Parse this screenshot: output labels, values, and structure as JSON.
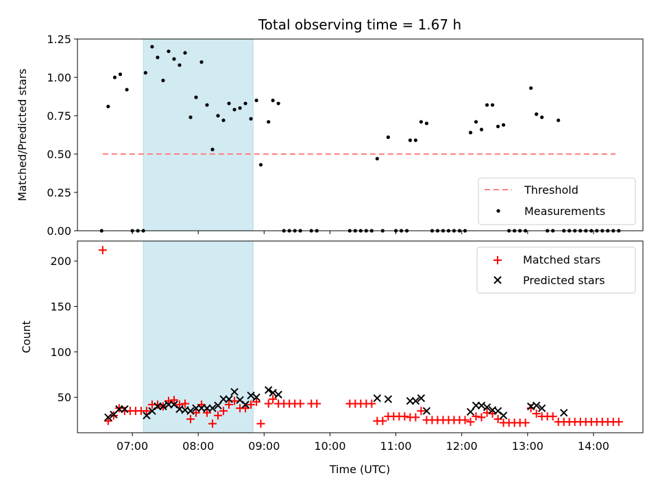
{
  "chart_data": [
    {
      "type": "scatter",
      "title": "Total observing time = 1.67 h",
      "ylabel": "Matched/Predicted stars",
      "xlabel": "",
      "xlim": [
        "06:10",
        "14:45"
      ],
      "ylim": [
        0,
        1.25
      ],
      "yticks": [
        "0.00",
        "0.25",
        "0.50",
        "0.75",
        "1.00",
        "1.25"
      ],
      "grid": false,
      "legend_position": "bottom-right",
      "shaded_interval": {
        "start": "07:10",
        "end": "08:50",
        "color": "#add8e6"
      },
      "threshold": {
        "name": "Threshold",
        "value": 0.5,
        "x_start": "06:33",
        "x_end": "14:20",
        "color": "#ff8080"
      },
      "series": [
        {
          "name": "Measurements",
          "color": "#000000",
          "points": [
            [
              "06:32",
              0
            ],
            [
              "06:38",
              0.81
            ],
            [
              "06:44",
              1.0
            ],
            [
              "06:49",
              1.02
            ],
            [
              "06:55",
              0.92
            ],
            [
              "07:00",
              0
            ],
            [
              "07:05",
              0
            ],
            [
              "07:10",
              0
            ],
            [
              "07:12",
              1.03
            ],
            [
              "07:18",
              1.2
            ],
            [
              "07:23",
              1.13
            ],
            [
              "07:28",
              0.98
            ],
            [
              "07:33",
              1.17
            ],
            [
              "07:38",
              1.12
            ],
            [
              "07:43",
              1.08
            ],
            [
              "07:48",
              1.16
            ],
            [
              "07:53",
              0.74
            ],
            [
              "07:58",
              0.87
            ],
            [
              "08:03",
              1.1
            ],
            [
              "08:08",
              0.82
            ],
            [
              "08:13",
              0.53
            ],
            [
              "08:18",
              0.75
            ],
            [
              "08:23",
              0.72
            ],
            [
              "08:28",
              0.83
            ],
            [
              "08:33",
              0.79
            ],
            [
              "08:38",
              0.8
            ],
            [
              "08:43",
              0.83
            ],
            [
              "08:48",
              0.73
            ],
            [
              "08:53",
              0.85
            ],
            [
              "08:57",
              0.43
            ],
            [
              "09:04",
              0.71
            ],
            [
              "09:08",
              0.85
            ],
            [
              "09:13",
              0.83
            ],
            [
              "09:18",
              0
            ],
            [
              "09:23",
              0
            ],
            [
              "09:28",
              0
            ],
            [
              "09:33",
              0
            ],
            [
              "09:43",
              0
            ],
            [
              "09:48",
              0
            ],
            [
              "10:18",
              0
            ],
            [
              "10:23",
              0
            ],
            [
              "10:28",
              0
            ],
            [
              "10:33",
              0
            ],
            [
              "10:38",
              0
            ],
            [
              "10:43",
              0.47
            ],
            [
              "10:48",
              0
            ],
            [
              "10:53",
              0.61
            ],
            [
              "11:00",
              0
            ],
            [
              "11:05",
              0
            ],
            [
              "11:10",
              0
            ],
            [
              "11:13",
              0.59
            ],
            [
              "11:18",
              0.59
            ],
            [
              "11:23",
              0.71
            ],
            [
              "11:28",
              0.7
            ],
            [
              "11:33",
              0
            ],
            [
              "11:38",
              0
            ],
            [
              "11:43",
              0
            ],
            [
              "11:48",
              0
            ],
            [
              "11:53",
              0
            ],
            [
              "11:58",
              0
            ],
            [
              "12:03",
              0
            ],
            [
              "12:08",
              0.64
            ],
            [
              "12:13",
              0.71
            ],
            [
              "12:18",
              0.66
            ],
            [
              "12:23",
              0.82
            ],
            [
              "12:28",
              0.82
            ],
            [
              "12:33",
              0.68
            ],
            [
              "12:38",
              0.69
            ],
            [
              "12:43",
              0
            ],
            [
              "12:48",
              0
            ],
            [
              "12:53",
              0
            ],
            [
              "12:58",
              0
            ],
            [
              "13:03",
              0.93
            ],
            [
              "13:08",
              0.76
            ],
            [
              "13:13",
              0.74
            ],
            [
              "13:18",
              0
            ],
            [
              "13:23",
              0
            ],
            [
              "13:28",
              0.72
            ],
            [
              "13:33",
              0
            ],
            [
              "13:38",
              0
            ],
            [
              "13:43",
              0
            ],
            [
              "13:48",
              0
            ],
            [
              "13:53",
              0
            ],
            [
              "13:58",
              0
            ],
            [
              "14:03",
              0
            ],
            [
              "14:08",
              0
            ],
            [
              "14:13",
              0
            ],
            [
              "14:18",
              0
            ],
            [
              "14:23",
              0
            ]
          ]
        }
      ]
    },
    {
      "type": "scatter",
      "title": "",
      "xlabel": "Time (UTC)",
      "ylabel": "Count",
      "xlim": [
        "06:10",
        "14:45"
      ],
      "ylim": [
        11,
        222
      ],
      "xticks": [
        "07:00",
        "08:00",
        "09:00",
        "10:00",
        "11:00",
        "12:00",
        "13:00",
        "14:00"
      ],
      "yticks": [
        "50",
        "100",
        "150",
        "200"
      ],
      "grid": false,
      "legend_position": "top-right",
      "shaded_interval": {
        "start": "07:10",
        "end": "08:50",
        "color": "#add8e6"
      },
      "series": [
        {
          "name": "Matched stars",
          "marker": "plus",
          "color": "#ff0000",
          "points": [
            [
              "06:33",
              212
            ],
            [
              "06:38",
              24
            ],
            [
              "06:43",
              30
            ],
            [
              "06:48",
              38
            ],
            [
              "06:53",
              35
            ],
            [
              "06:58",
              35
            ],
            [
              "07:03",
              35
            ],
            [
              "07:08",
              35
            ],
            [
              "07:13",
              35
            ],
            [
              "07:18",
              42
            ],
            [
              "07:23",
              42
            ],
            [
              "07:28",
              40
            ],
            [
              "07:33",
              46
            ],
            [
              "07:38",
              47
            ],
            [
              "07:43",
              42
            ],
            [
              "07:48",
              43
            ],
            [
              "07:53",
              26
            ],
            [
              "07:58",
              33
            ],
            [
              "08:03",
              42
            ],
            [
              "08:08",
              33
            ],
            [
              "08:13",
              21
            ],
            [
              "08:18",
              30
            ],
            [
              "08:23",
              35
            ],
            [
              "08:28",
              42
            ],
            [
              "08:33",
              46
            ],
            [
              "08:38",
              38
            ],
            [
              "08:43",
              38
            ],
            [
              "08:48",
              42
            ],
            [
              "08:53",
              45
            ],
            [
              "08:57",
              21
            ],
            [
              "09:04",
              43
            ],
            [
              "09:08",
              48
            ],
            [
              "09:13",
              43
            ],
            [
              "09:18",
              43
            ],
            [
              "09:23",
              43
            ],
            [
              "09:28",
              43
            ],
            [
              "09:33",
              43
            ],
            [
              "09:43",
              43
            ],
            [
              "09:48",
              43
            ],
            [
              "10:18",
              43
            ],
            [
              "10:23",
              43
            ],
            [
              "10:28",
              43
            ],
            [
              "10:33",
              43
            ],
            [
              "10:38",
              43
            ],
            [
              "10:43",
              24
            ],
            [
              "10:48",
              24
            ],
            [
              "10:53",
              29
            ],
            [
              "10:58",
              29
            ],
            [
              "11:03",
              29
            ],
            [
              "11:08",
              29
            ],
            [
              "11:13",
              28
            ],
            [
              "11:18",
              28
            ],
            [
              "11:23",
              35
            ],
            [
              "11:28",
              25
            ],
            [
              "11:33",
              25
            ],
            [
              "11:38",
              25
            ],
            [
              "11:43",
              25
            ],
            [
              "11:48",
              25
            ],
            [
              "11:53",
              25
            ],
            [
              "11:58",
              25
            ],
            [
              "12:03",
              25
            ],
            [
              "12:08",
              23
            ],
            [
              "12:13",
              29
            ],
            [
              "12:18",
              28
            ],
            [
              "12:23",
              33
            ],
            [
              "12:28",
              32
            ],
            [
              "12:33",
              26
            ],
            [
              "12:38",
              22
            ],
            [
              "12:43",
              22
            ],
            [
              "12:48",
              22
            ],
            [
              "12:53",
              22
            ],
            [
              "12:58",
              22
            ],
            [
              "13:03",
              38
            ],
            [
              "13:08",
              32
            ],
            [
              "13:13",
              29
            ],
            [
              "13:18",
              29
            ],
            [
              "13:23",
              29
            ],
            [
              "13:28",
              23
            ],
            [
              "13:33",
              23
            ],
            [
              "13:38",
              23
            ],
            [
              "13:43",
              23
            ],
            [
              "13:48",
              23
            ],
            [
              "13:53",
              23
            ],
            [
              "13:58",
              23
            ],
            [
              "14:03",
              23
            ],
            [
              "14:08",
              23
            ],
            [
              "14:13",
              23
            ],
            [
              "14:18",
              23
            ],
            [
              "14:23",
              23
            ]
          ]
        },
        {
          "name": "Predicted stars",
          "marker": "x",
          "color": "#000000",
          "points": [
            [
              "06:38",
              28
            ],
            [
              "06:43",
              31
            ],
            [
              "06:48",
              37
            ],
            [
              "06:53",
              37
            ],
            [
              "07:13",
              30
            ],
            [
              "07:18",
              35
            ],
            [
              "07:23",
              40
            ],
            [
              "07:28",
              40
            ],
            [
              "07:33",
              42
            ],
            [
              "07:38",
              42
            ],
            [
              "07:43",
              37
            ],
            [
              "07:48",
              36
            ],
            [
              "07:53",
              35
            ],
            [
              "07:58",
              38
            ],
            [
              "08:03",
              38
            ],
            [
              "08:08",
              38
            ],
            [
              "08:13",
              38
            ],
            [
              "08:18",
              41
            ],
            [
              "08:23",
              48
            ],
            [
              "08:28",
              48
            ],
            [
              "08:33",
              56
            ],
            [
              "08:38",
              47
            ],
            [
              "08:43",
              42
            ],
            [
              "08:48",
              52
            ],
            [
              "08:53",
              50
            ],
            [
              "09:04",
              58
            ],
            [
              "09:08",
              55
            ],
            [
              "09:13",
              53
            ],
            [
              "10:43",
              49
            ],
            [
              "10:53",
              48
            ],
            [
              "11:13",
              46
            ],
            [
              "11:18",
              46
            ],
            [
              "11:23",
              49
            ],
            [
              "11:28",
              35
            ],
            [
              "12:08",
              34
            ],
            [
              "12:13",
              41
            ],
            [
              "12:18",
              41
            ],
            [
              "12:23",
              39
            ],
            [
              "12:28",
              36
            ],
            [
              "12:33",
              35
            ],
            [
              "12:38",
              30
            ],
            [
              "13:03",
              40
            ],
            [
              "13:08",
              41
            ],
            [
              "13:13",
              38
            ],
            [
              "13:33",
              33
            ]
          ]
        }
      ]
    }
  ]
}
